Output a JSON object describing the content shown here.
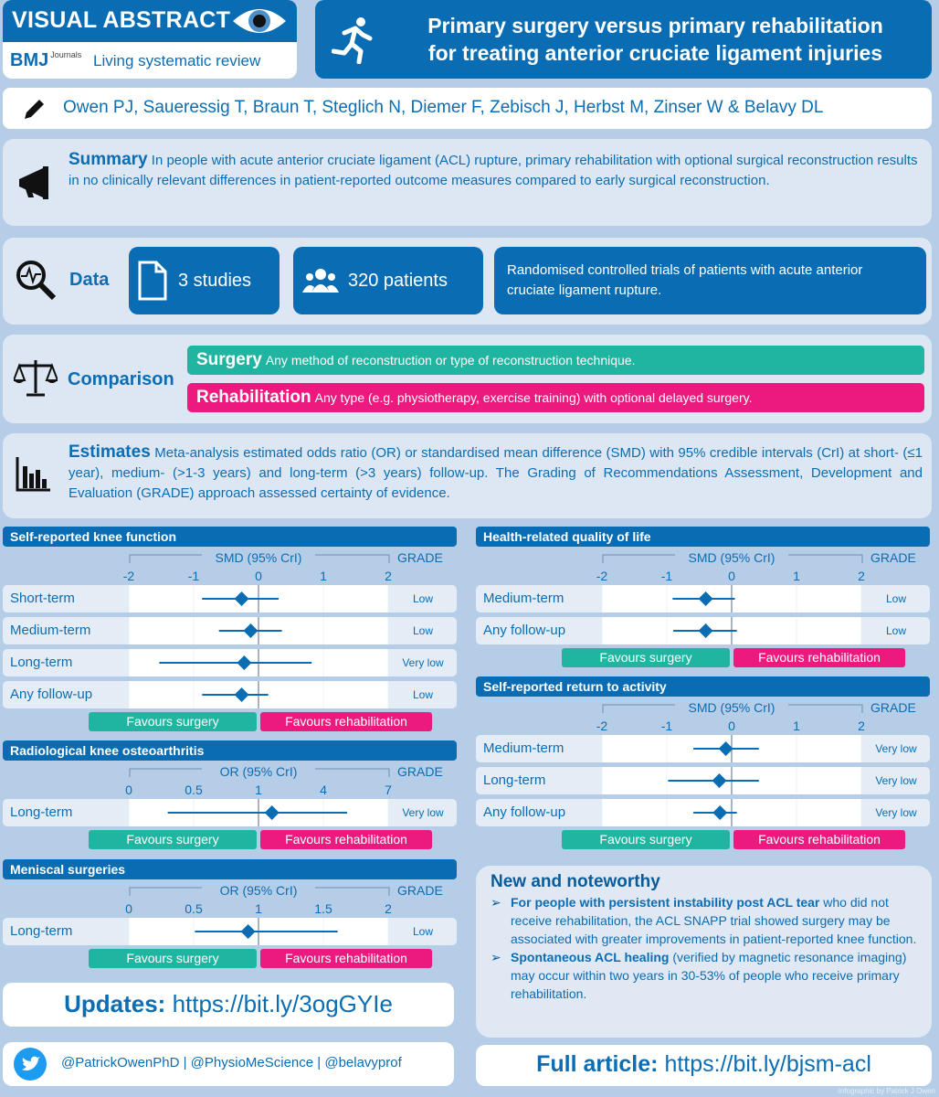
{
  "header": {
    "badge": "VISUAL ABSTRACT",
    "journal": "BMJ",
    "journal_sup": "Journals",
    "review_type": "Living systematic review",
    "title_line1": "Primary surgery versus primary rehabilitation",
    "title_line2": "for treating anterior cruciate ligament injuries"
  },
  "authors": "Owen PJ, Saueressig T, Braun T, Steglich N, Diemer F, Zebisch J, Herbst M, Zinser W & Belavy DL",
  "summary": {
    "heading": "Summary",
    "text": "In people with acute anterior cruciate ligament (ACL) rupture, primary rehabilitation with optional surgical reconstruction results in no clinically relevant differences in patient-reported outcome measures compared to early surgical reconstruction."
  },
  "data": {
    "heading": "Data",
    "studies": "3 studies",
    "patients": "320 patients",
    "description": "Randomised controlled trials of patients with acute anterior cruciate ligament rupture."
  },
  "comparison": {
    "heading": "Comparison",
    "surgery_label": "Surgery",
    "surgery_text": "Any method of reconstruction or type of reconstruction technique.",
    "rehab_label": "Rehabilitation",
    "rehab_text": "Any type (e.g. physiotherapy, exercise training) with optional delayed surgery."
  },
  "estimates": {
    "heading": "Estimates",
    "text": "Meta-analysis estimated odds ratio (OR) or standardised mean difference (SMD) with 95% credible intervals (CrI) at short- (≤1 year), medium- (>1-3 years) and long-term (>3 years) follow-up. The Grading of Recommendations Assessment, Development and Evaluation (GRADE) approach assessed certainty of evidence."
  },
  "favours": {
    "surgery": "Favours surgery",
    "rehab": "Favours rehabilitation"
  },
  "grade_label": "GRADE",
  "plots": [
    {
      "title": "Self-reported knee function",
      "measure": "SMD (95% CrI)",
      "ticks": [
        "-2",
        "-1",
        "0",
        "1",
        "2"
      ],
      "tick_values": [
        -2,
        -1,
        0,
        1,
        2
      ],
      "null": 0,
      "rows": [
        {
          "label": "Short-term",
          "est": -0.26,
          "lo": -0.87,
          "hi": 0.31,
          "grade": "Low"
        },
        {
          "label": "Medium-term",
          "est": -0.12,
          "lo": -0.61,
          "hi": 0.36,
          "grade": "Low"
        },
        {
          "label": "Long-term",
          "est": -0.22,
          "lo": -1.53,
          "hi": 0.82,
          "grade": "Very low"
        },
        {
          "label": "Any follow-up",
          "est": -0.26,
          "lo": -0.87,
          "hi": 0.15,
          "grade": "Low"
        }
      ]
    },
    {
      "title": "Radiological knee osteoarthritis",
      "measure": "OR (95% CrI)",
      "ticks": [
        "0",
        "0.5",
        "1",
        "4",
        "7"
      ],
      "tick_values": [
        0,
        0.5,
        1,
        4,
        7
      ],
      "null": 1,
      "rows": [
        {
          "label": "Long-term",
          "est": 1.62,
          "lo": 0.3,
          "hi": 5.1,
          "grade": "Very low"
        }
      ]
    },
    {
      "title": "Meniscal surgeries",
      "measure": "OR (95% CrI)",
      "ticks": [
        "0",
        "0.5",
        "1",
        "1.5",
        "2"
      ],
      "tick_values": [
        0,
        0.5,
        1,
        1.5,
        2
      ],
      "null": 1,
      "rows": [
        {
          "label": "Long-term",
          "est": 0.92,
          "lo": 0.51,
          "hi": 1.61,
          "grade": "Low"
        }
      ]
    },
    {
      "title": "Health-related quality of life",
      "measure": "SMD (95% CrI)",
      "ticks": [
        "-2",
        "-1",
        "0",
        "1",
        "2"
      ],
      "tick_values": [
        -2,
        -1,
        0,
        1,
        2
      ],
      "null": 0,
      "rows": [
        {
          "label": "Medium-term",
          "est": -0.4,
          "lo": -0.91,
          "hi": 0.05,
          "grade": "Low"
        },
        {
          "label": "Any follow-up",
          "est": -0.4,
          "lo": -0.9,
          "hi": 0.08,
          "grade": "Low"
        }
      ]
    },
    {
      "title": "Self-reported return to activity",
      "measure": "SMD (95% CrI)",
      "ticks": [
        "-2",
        "-1",
        "0",
        "1",
        "2"
      ],
      "tick_values": [
        -2,
        -1,
        0,
        1,
        2
      ],
      "null": 0,
      "rows": [
        {
          "label": "Medium-term",
          "est": -0.09,
          "lo": -0.59,
          "hi": 0.42,
          "grade": "Very low"
        },
        {
          "label": "Long-term",
          "est": -0.19,
          "lo": -0.98,
          "hi": 0.42,
          "grade": "Very low"
        },
        {
          "label": "Any follow-up",
          "est": -0.18,
          "lo": -0.59,
          "hi": 0.08,
          "grade": "Very low"
        }
      ]
    }
  ],
  "news": {
    "heading": "New and noteworthy",
    "item1_bold": "For people with persistent instability post ACL tear",
    "item1_text": " who did not receive rehabilitation, the ACL SNAPP trial showed surgery may be associated with greater improvements in patient-reported knee function.",
    "item2_bold": "Spontaneous ACL healing",
    "item2_text": " (verified by magnetic resonance imaging) may occur within two years in 30-53% of people who receive primary rehabilitation."
  },
  "updates": {
    "label": "Updates:",
    "url": "https://bit.ly/3ogGYIe"
  },
  "social": "@PatrickOwenPhD | @PhysioMeScience | @belavyprof",
  "article": {
    "label": "Full article:",
    "url": "https://bit.ly/bjsm-acl"
  },
  "credit": "Infographic by Patrick J Owen",
  "colors": {
    "primary": "#0a6db4",
    "surgery": "#1fb5a0",
    "rehabilitation": "#ec1a7f",
    "background": "#b5cde7"
  }
}
